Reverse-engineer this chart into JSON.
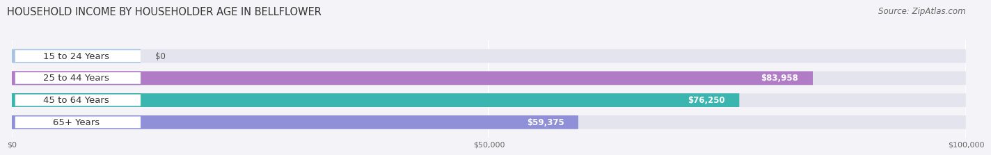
{
  "title": "HOUSEHOLD INCOME BY HOUSEHOLDER AGE IN BELLFLOWER",
  "source": "Source: ZipAtlas.com",
  "categories": [
    "15 to 24 Years",
    "25 to 44 Years",
    "45 to 64 Years",
    "65+ Years"
  ],
  "values": [
    0,
    83958,
    76250,
    59375
  ],
  "bar_colors": [
    "#a8c4e0",
    "#b07cc6",
    "#3ab5b0",
    "#9090d8"
  ],
  "bar_bg_color": "#e4e4ee",
  "xlim": [
    0,
    100000
  ],
  "xtick_labels": [
    "$0",
    "$50,000",
    "$100,000"
  ],
  "xtick_values": [
    0,
    50000,
    100000
  ],
  "title_fontsize": 10.5,
  "source_fontsize": 8.5,
  "label_fontsize": 9.5,
  "value_fontsize": 8.5,
  "background_color": "#f4f4f8"
}
